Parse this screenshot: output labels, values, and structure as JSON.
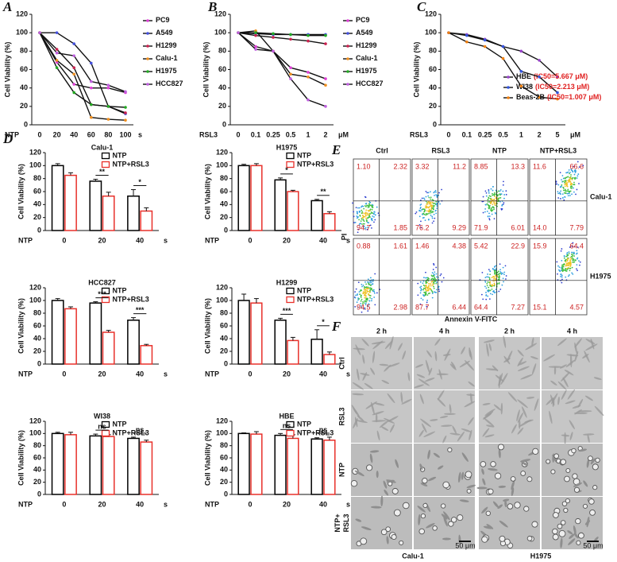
{
  "panel_labels": [
    "A",
    "B",
    "C",
    "D",
    "E",
    "F"
  ],
  "chart_data": [
    {
      "type": "line",
      "y_label": "Cell Viability (%)",
      "x_label": "NTP",
      "x_unit": "s",
      "categories": [
        "0",
        "20",
        "40",
        "60",
        "80",
        "100"
      ],
      "ylim": [
        0,
        120
      ],
      "yticks": [
        0,
        20,
        40,
        60,
        80,
        100,
        120
      ],
      "legend": "right",
      "series": [
        {
          "name": "PC9",
          "color": "#e040d8",
          "values": [
            100,
            68,
            44,
            40,
            40,
            35
          ]
        },
        {
          "name": "A549",
          "color": "#4450dd",
          "values": [
            100,
            100,
            88,
            67,
            20,
            12
          ]
        },
        {
          "name": "H1299",
          "color": "#cc2250",
          "values": [
            100,
            82,
            62,
            22,
            20,
            13
          ]
        },
        {
          "name": "Calu-1",
          "color": "#f09020",
          "values": [
            100,
            70,
            55,
            8,
            6,
            5
          ]
        },
        {
          "name": "H1975",
          "color": "#22aa22",
          "values": [
            100,
            62,
            35,
            22,
            20,
            19
          ]
        },
        {
          "name": "HCC827",
          "color": "#c060e0",
          "values": [
            100,
            78,
            75,
            47,
            43,
            36
          ]
        }
      ]
    },
    {
      "type": "line",
      "y_label": "Cell Viability (%)",
      "x_label": "RSL3",
      "x_unit": "μM",
      "categories": [
        "0",
        "0.1",
        "0.25",
        "0.5",
        "1",
        "2"
      ],
      "ylim": [
        0,
        120
      ],
      "yticks": [
        0,
        20,
        40,
        60,
        80,
        100,
        120
      ],
      "legend": "right",
      "series": [
        {
          "name": "PC9",
          "color": "#e040d8",
          "values": [
            100,
            85,
            80,
            62,
            57,
            50
          ]
        },
        {
          "name": "A549",
          "color": "#4450dd",
          "values": [
            100,
            99,
            98,
            98,
            98,
            98
          ]
        },
        {
          "name": "H1299",
          "color": "#cc2250",
          "values": [
            100,
            97,
            95,
            93,
            91,
            88
          ]
        },
        {
          "name": "Calu-1",
          "color": "#f09020",
          "values": [
            100,
            102,
            80,
            55,
            52,
            43
          ]
        },
        {
          "name": "H1975",
          "color": "#22aa22",
          "values": [
            100,
            100,
            99,
            98,
            97,
            97
          ]
        },
        {
          "name": "HCC827",
          "color": "#c060e0",
          "values": [
            100,
            82,
            80,
            50,
            27,
            20
          ]
        }
      ]
    },
    {
      "type": "line",
      "y_label": "Cell Viability (%)",
      "x_label": "RSL3",
      "x_unit": "μM",
      "categories": [
        "0",
        "0.1",
        "0.25",
        "0.5",
        "1",
        "2",
        "5"
      ],
      "ylim": [
        0,
        120
      ],
      "yticks": [
        0,
        20,
        40,
        60,
        80,
        100,
        120
      ],
      "legend": "lower right",
      "series": [
        {
          "name": "HBE",
          "ic50": "(IC50=5.667 μM)",
          "color": "#9944cc",
          "values": [
            100,
            98,
            93,
            85,
            80,
            70,
            52
          ]
        },
        {
          "name": "WI38",
          "ic50": "(IC50=2.213 μM)",
          "color": "#3355dd",
          "values": [
            100,
            97,
            92,
            85,
            58,
            52,
            35
          ]
        },
        {
          "name": "Beas-2B",
          "ic50": "(IC50=1.007 μM)",
          "color": "#f08010",
          "values": [
            100,
            90,
            85,
            72,
            42,
            30,
            28
          ]
        }
      ]
    },
    {
      "type": "bar",
      "title": "Calu-1",
      "y_label": "Cell Viability (%)",
      "x_label": "NTP",
      "x_unit": "s",
      "categories": [
        "0",
        "20",
        "40"
      ],
      "ylim": [
        0,
        120
      ],
      "yticks": [
        0,
        20,
        40,
        60,
        80,
        100,
        120
      ],
      "legend": "upper right",
      "series": [
        {
          "name": "NTP",
          "color": "#000000",
          "values": [
            100,
            76,
            53
          ],
          "errors": [
            3,
            3,
            10
          ]
        },
        {
          "name": "NTP+RSL3",
          "color": "#e8302a",
          "values": [
            85,
            53,
            30
          ],
          "errors": [
            4,
            6,
            5
          ]
        }
      ],
      "significance": [
        {
          "category": 1,
          "label": "**"
        },
        {
          "category": 2,
          "label": "*"
        }
      ]
    },
    {
      "type": "bar",
      "title": "H1975",
      "y_label": "Cell Viability (%)",
      "x_label": "NTP",
      "x_unit": "s",
      "categories": [
        "0",
        "20",
        "40"
      ],
      "ylim": [
        0,
        120
      ],
      "yticks": [
        0,
        20,
        40,
        60,
        80,
        100,
        120
      ],
      "legend": "upper right",
      "series": [
        {
          "name": "NTP",
          "color": "#000000",
          "values": [
            100,
            78,
            46
          ],
          "errors": [
            2,
            3,
            2
          ]
        },
        {
          "name": "NTP+RSL3",
          "color": "#e8302a",
          "values": [
            100,
            60,
            26
          ],
          "errors": [
            3,
            2,
            3
          ]
        }
      ],
      "significance": [
        {
          "category": 1,
          "label": "*"
        },
        {
          "category": 2,
          "label": "**"
        }
      ]
    },
    {
      "type": "bar",
      "title": "HCC827",
      "y_label": "Cell Viability (%)",
      "x_label": "NTP",
      "x_unit": "s",
      "categories": [
        "0",
        "20",
        "40"
      ],
      "ylim": [
        0,
        120
      ],
      "yticks": [
        0,
        20,
        40,
        60,
        80,
        100,
        120
      ],
      "legend": "upper right",
      "series": [
        {
          "name": "NTP",
          "color": "#000000",
          "values": [
            100,
            96,
            69
          ],
          "errors": [
            3,
            2,
            4
          ]
        },
        {
          "name": "NTP+RSL3",
          "color": "#e8302a",
          "values": [
            87,
            50,
            29
          ],
          "errors": [
            3,
            3,
            2
          ]
        }
      ],
      "significance": [
        {
          "category": 1,
          "label": "***"
        },
        {
          "category": 2,
          "label": "***"
        }
      ]
    },
    {
      "type": "bar",
      "title": "H1299",
      "y_label": "Cell Viability (%)",
      "x_label": "NTP",
      "x_unit": "s",
      "categories": [
        "0",
        "20",
        "40"
      ],
      "ylim": [
        0,
        120
      ],
      "yticks": [
        0,
        20,
        40,
        60,
        80,
        100,
        120
      ],
      "legend": "upper right",
      "series": [
        {
          "name": "NTP",
          "color": "#000000",
          "values": [
            100,
            69,
            39
          ],
          "errors": [
            10,
            3,
            15
          ]
        },
        {
          "name": "NTP+RSL3",
          "color": "#e8302a",
          "values": [
            96,
            37,
            15
          ],
          "errors": [
            7,
            5,
            4
          ]
        }
      ],
      "significance": [
        {
          "category": 1,
          "label": "***"
        },
        {
          "category": 2,
          "label": "*"
        }
      ]
    },
    {
      "type": "bar",
      "title": "WI38",
      "y_label": "Cell Viability (%)",
      "x_label": "NTP",
      "x_unit": "s",
      "categories": [
        "0",
        "20",
        "40"
      ],
      "ylim": [
        0,
        120
      ],
      "yticks": [
        0,
        20,
        40,
        60,
        80,
        100,
        120
      ],
      "legend": "upper right",
      "series": [
        {
          "name": "NTP",
          "color": "#000000",
          "values": [
            100,
            96,
            92
          ],
          "errors": [
            2,
            3,
            2
          ]
        },
        {
          "name": "NTP+RSL3",
          "color": "#e8302a",
          "values": [
            98,
            95,
            86
          ],
          "errors": [
            4,
            3,
            3
          ]
        }
      ],
      "significance": [
        {
          "category": 1,
          "label": "ns"
        },
        {
          "category": 2,
          "label": "ns"
        }
      ]
    },
    {
      "type": "bar",
      "title": "HBE",
      "y_label": "Cell Viability (%)",
      "x_label": "NTP",
      "x_unit": "s",
      "categories": [
        "0",
        "20",
        "40"
      ],
      "ylim": [
        0,
        120
      ],
      "yticks": [
        0,
        20,
        40,
        60,
        80,
        100,
        120
      ],
      "legend": "upper right",
      "series": [
        {
          "name": "NTP",
          "color": "#000000",
          "values": [
            100,
            97,
            91
          ],
          "errors": [
            1,
            3,
            2
          ]
        },
        {
          "name": "NTP+RSL3",
          "color": "#e8302a",
          "values": [
            99,
            92,
            89
          ],
          "errors": [
            4,
            6,
            5
          ]
        }
      ],
      "significance": [
        {
          "category": 1,
          "label": "ns"
        },
        {
          "category": 2,
          "label": "ns"
        }
      ]
    }
  ],
  "flow_cytometry": {
    "columns": [
      "Ctrl",
      "RSL3",
      "NTP",
      "NTP+RSL3"
    ],
    "x_label": "Annexin V-FITC",
    "y_label": "PI",
    "rows": [
      {
        "label": "Calu-1",
        "quadrants": [
          [
            "1.10",
            "2.32",
            "94.7",
            "1.85"
          ],
          [
            "3.32",
            "11.2",
            "76.2",
            "9.29"
          ],
          [
            "8.85",
            "13.3",
            "71.9",
            "6.01"
          ],
          [
            "11.6",
            "66.6",
            "14.0",
            "7.79"
          ]
        ]
      },
      {
        "label": "H1975",
        "quadrants": [
          [
            "0.88",
            "1.61",
            "94.5",
            "2.98"
          ],
          [
            "1.46",
            "4.38",
            "87.7",
            "6.44"
          ],
          [
            "5.42",
            "22.9",
            "64.4",
            "7.27"
          ],
          [
            "15.9",
            "64.4",
            "15.1",
            "4.57"
          ]
        ]
      }
    ]
  },
  "microscopy": {
    "columns": [
      "2 h",
      "4 h",
      "2 h",
      "4 h"
    ],
    "rows": [
      [
        "Ctrl"
      ],
      [
        "RSL3"
      ],
      [
        "NTP"
      ],
      [
        "NTP+",
        "RSL3"
      ]
    ],
    "groups": [
      "Calu-1",
      "H1975"
    ],
    "scale_bar": "50 μm"
  }
}
